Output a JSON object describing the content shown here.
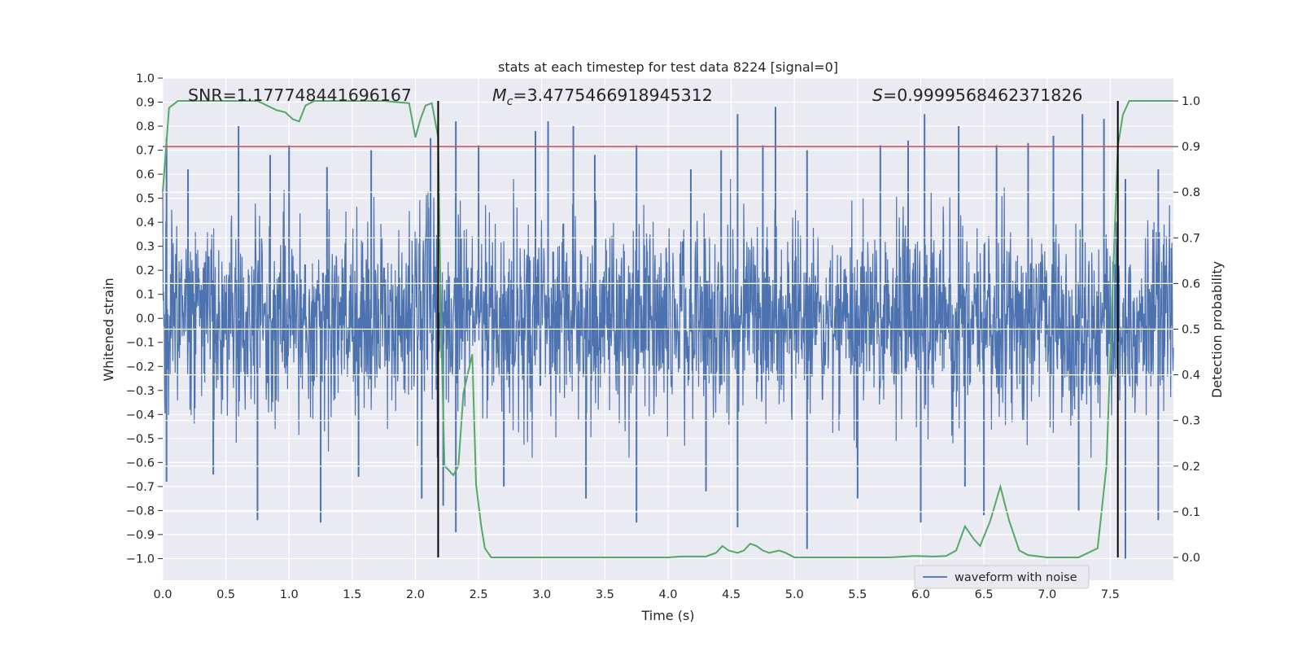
{
  "chart_data": {
    "type": "line",
    "title": "stats at each timestep for test data 8224 [signal=0]",
    "xlabel": "Time (s)",
    "ylabel_left": "Whitened strain",
    "ylabel_right": "Detection probability",
    "xlim": [
      0.0,
      8.0
    ],
    "ylim_left": [
      -1.09,
      1.0
    ],
    "ylim_right": [
      -0.05,
      1.05
    ],
    "x_ticks": [
      "0.0",
      "0.5",
      "1.0",
      "1.5",
      "2.0",
      "2.5",
      "3.0",
      "3.5",
      "4.0",
      "4.5",
      "5.0",
      "5.5",
      "6.0",
      "6.5",
      "7.0",
      "7.5"
    ],
    "y_ticks_left": [
      "1.0",
      "0.9",
      "0.8",
      "0.7",
      "0.6",
      "0.5",
      "0.4",
      "0.3",
      "0.2",
      "0.1",
      "0.0",
      "−0.1",
      "−0.2",
      "−0.3",
      "−0.4",
      "−0.5",
      "−0.6",
      "−0.7",
      "−0.8",
      "−0.9",
      "−1.0"
    ],
    "y_ticks_right": [
      "1.0",
      "0.9",
      "0.8",
      "0.7",
      "0.6",
      "0.5",
      "0.4",
      "0.3",
      "0.2",
      "0.1",
      "0.0"
    ],
    "grid": true,
    "legend_position": "lower-right",
    "annotations": {
      "snr": "SNR=1.177748441696167",
      "mc_symbol": "M",
      "mc_sub": "c",
      "mc_value": "=3.4775466918945312",
      "s_symbol": "S",
      "s_value": "=0.9999568462371826"
    },
    "threshold_line": {
      "axis": "right",
      "y": 0.9,
      "color": "#c44e52"
    },
    "vertical_lines": [
      2.18,
      7.56
    ],
    "series": [
      {
        "name": "waveform with noise",
        "axis": "left",
        "color": "#4c72b0",
        "note": "dense noisy whitened strain; envelope approx ±0.3 core, spikes to ±0.85",
        "envelope_peaks_positive": [
          [
            0.03,
            0.75
          ],
          [
            0.2,
            0.62
          ],
          [
            0.6,
            0.8
          ],
          [
            0.85,
            0.68
          ],
          [
            1.0,
            0.72
          ],
          [
            1.3,
            0.63
          ],
          [
            1.65,
            0.7
          ],
          [
            2.12,
            0.75
          ],
          [
            2.32,
            0.82
          ],
          [
            2.5,
            0.72
          ],
          [
            2.95,
            0.78
          ],
          [
            3.05,
            0.82
          ],
          [
            3.25,
            0.8
          ],
          [
            3.42,
            0.68
          ],
          [
            3.75,
            0.72
          ],
          [
            4.18,
            0.62
          ],
          [
            4.42,
            0.7
          ],
          [
            4.55,
            0.85
          ],
          [
            4.75,
            0.72
          ],
          [
            4.85,
            0.88
          ],
          [
            5.1,
            0.7
          ],
          [
            5.68,
            0.72
          ],
          [
            5.9,
            0.74
          ],
          [
            6.03,
            0.85
          ],
          [
            6.3,
            0.8
          ],
          [
            6.6,
            0.72
          ],
          [
            6.85,
            0.73
          ],
          [
            7.05,
            0.76
          ],
          [
            7.28,
            0.85
          ],
          [
            7.45,
            0.83
          ],
          [
            7.62,
            0.58
          ],
          [
            7.88,
            0.62
          ]
        ],
        "envelope_peaks_negative": [
          [
            0.03,
            -0.68
          ],
          [
            0.4,
            -0.65
          ],
          [
            0.75,
            -0.84
          ],
          [
            1.25,
            -0.85
          ],
          [
            1.55,
            -0.66
          ],
          [
            2.05,
            -0.75
          ],
          [
            2.22,
            -0.78
          ],
          [
            2.32,
            -0.89
          ],
          [
            2.7,
            -0.7
          ],
          [
            3.35,
            -0.75
          ],
          [
            3.75,
            -0.85
          ],
          [
            4.3,
            -0.72
          ],
          [
            4.55,
            -0.87
          ],
          [
            5.1,
            -0.96
          ],
          [
            5.5,
            -0.75
          ],
          [
            6.0,
            -0.85
          ],
          [
            6.35,
            -0.7
          ],
          [
            6.5,
            -0.82
          ],
          [
            7.25,
            -0.8
          ],
          [
            7.62,
            -1.0
          ],
          [
            7.88,
            -0.84
          ]
        ]
      },
      {
        "name": "",
        "axis": "right",
        "color": "#55a868",
        "points": [
          [
            0.0,
            0.8
          ],
          [
            0.05,
            0.985
          ],
          [
            0.12,
            1.0
          ],
          [
            0.25,
            1.0
          ],
          [
            0.5,
            1.0
          ],
          [
            0.75,
            1.0
          ],
          [
            0.9,
            0.98
          ],
          [
            0.97,
            0.975
          ],
          [
            1.03,
            0.96
          ],
          [
            1.08,
            0.955
          ],
          [
            1.13,
            0.99
          ],
          [
            1.2,
            1.0
          ],
          [
            1.5,
            1.0
          ],
          [
            1.75,
            1.0
          ],
          [
            1.95,
            0.995
          ],
          [
            2.0,
            0.92
          ],
          [
            2.04,
            0.96
          ],
          [
            2.08,
            0.99
          ],
          [
            2.13,
            0.995
          ],
          [
            2.18,
            0.92
          ],
          [
            2.2,
            0.55
          ],
          [
            2.23,
            0.2
          ],
          [
            2.25,
            0.195
          ],
          [
            2.3,
            0.18
          ],
          [
            2.34,
            0.2
          ],
          [
            2.38,
            0.36
          ],
          [
            2.45,
            0.445
          ],
          [
            2.48,
            0.16
          ],
          [
            2.52,
            0.07
          ],
          [
            2.55,
            0.02
          ],
          [
            2.6,
            0.0
          ],
          [
            2.75,
            0.0
          ],
          [
            3.0,
            0.0
          ],
          [
            3.25,
            0.0
          ],
          [
            3.5,
            0.0
          ],
          [
            3.75,
            0.0
          ],
          [
            4.0,
            0.0
          ],
          [
            4.1,
            0.002
          ],
          [
            4.3,
            0.002
          ],
          [
            4.38,
            0.01
          ],
          [
            4.43,
            0.025
          ],
          [
            4.48,
            0.015
          ],
          [
            4.55,
            0.01
          ],
          [
            4.6,
            0.015
          ],
          [
            4.65,
            0.03
          ],
          [
            4.7,
            0.025
          ],
          [
            4.75,
            0.015
          ],
          [
            4.8,
            0.01
          ],
          [
            4.88,
            0.015
          ],
          [
            4.93,
            0.01
          ],
          [
            5.0,
            0.0
          ],
          [
            5.25,
            0.0
          ],
          [
            5.5,
            0.0
          ],
          [
            5.75,
            0.0
          ],
          [
            5.95,
            0.003
          ],
          [
            6.1,
            0.002
          ],
          [
            6.2,
            0.003
          ],
          [
            6.28,
            0.015
          ],
          [
            6.35,
            0.068
          ],
          [
            6.42,
            0.04
          ],
          [
            6.47,
            0.025
          ],
          [
            6.55,
            0.08
          ],
          [
            6.63,
            0.155
          ],
          [
            6.7,
            0.08
          ],
          [
            6.78,
            0.015
          ],
          [
            6.85,
            0.005
          ],
          [
            7.0,
            0.0
          ],
          [
            7.25,
            0.0
          ],
          [
            7.4,
            0.02
          ],
          [
            7.47,
            0.2
          ],
          [
            7.52,
            0.6
          ],
          [
            7.56,
            0.9
          ],
          [
            7.6,
            0.97
          ],
          [
            7.65,
            1.0
          ],
          [
            8.0,
            1.0
          ]
        ]
      }
    ]
  }
}
